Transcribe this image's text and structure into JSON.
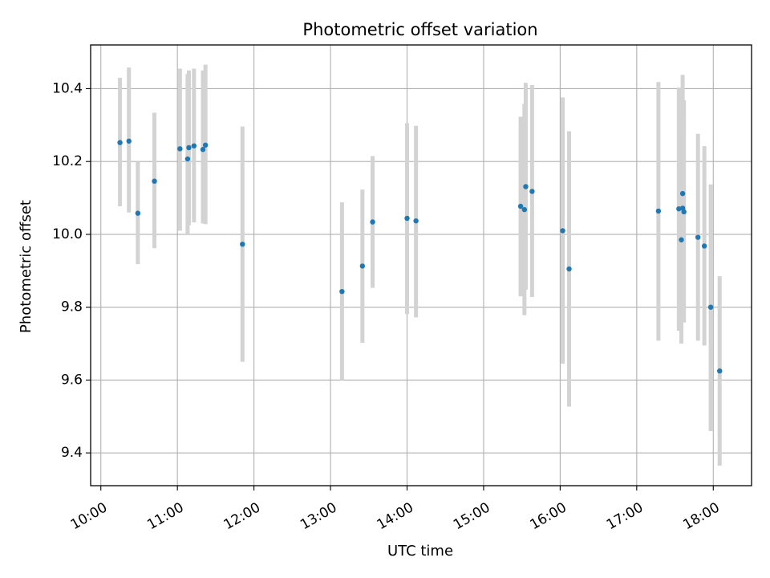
{
  "chart_data": {
    "type": "scatter",
    "title": "Photometric offset variation",
    "xlabel": "UTC time",
    "ylabel": "Photometric offset",
    "xlim": [
      "09:52",
      "18:30"
    ],
    "ylim": [
      9.31,
      10.52
    ],
    "grid": true,
    "x_ticks": [
      "10:00",
      "11:00",
      "12:00",
      "13:00",
      "14:00",
      "15:00",
      "16:00",
      "17:00",
      "18:00"
    ],
    "y_ticks": [
      9.4,
      9.6,
      9.8,
      10.0,
      10.2,
      10.4
    ],
    "y_tick_labels": [
      "9.4",
      "9.6",
      "9.8",
      "10.0",
      "10.2",
      "10.4"
    ],
    "series": [
      {
        "marker_color": "#1f77b4",
        "errorbar_color": "#d3d3d3",
        "points": [
          {
            "x": "10:15",
            "y": 10.252,
            "ylow": 10.077,
            "yhigh": 10.43
          },
          {
            "x": "10:22",
            "y": 10.256,
            "ylow": 10.06,
            "yhigh": 10.458
          },
          {
            "x": "10:29",
            "y": 10.058,
            "ylow": 9.918,
            "yhigh": 10.2
          },
          {
            "x": "10:42",
            "y": 10.146,
            "ylow": 9.962,
            "yhigh": 10.334
          },
          {
            "x": "11:02",
            "y": 10.235,
            "ylow": 10.01,
            "yhigh": 10.455
          },
          {
            "x": "11:08",
            "y": 10.207,
            "ylow": 10.0,
            "yhigh": 10.44
          },
          {
            "x": "11:09",
            "y": 10.238,
            "ylow": 10.025,
            "yhigh": 10.45
          },
          {
            "x": "11:13",
            "y": 10.243,
            "ylow": 10.033,
            "yhigh": 10.455
          },
          {
            "x": "11:20",
            "y": 10.233,
            "ylow": 10.03,
            "yhigh": 10.45
          },
          {
            "x": "11:22",
            "y": 10.245,
            "ylow": 10.028,
            "yhigh": 10.466
          },
          {
            "x": "11:51",
            "y": 9.973,
            "ylow": 9.65,
            "yhigh": 10.296
          },
          {
            "x": "13:09",
            "y": 9.843,
            "ylow": 9.6,
            "yhigh": 10.088
          },
          {
            "x": "13:25",
            "y": 9.913,
            "ylow": 9.702,
            "yhigh": 10.123
          },
          {
            "x": "13:33",
            "y": 10.034,
            "ylow": 9.853,
            "yhigh": 10.215
          },
          {
            "x": "14:00",
            "y": 10.044,
            "ylow": 9.781,
            "yhigh": 10.305
          },
          {
            "x": "14:07",
            "y": 10.037,
            "ylow": 9.772,
            "yhigh": 10.298
          },
          {
            "x": "15:29",
            "y": 10.077,
            "ylow": 9.83,
            "yhigh": 10.323
          },
          {
            "x": "15:32",
            "y": 10.068,
            "ylow": 9.778,
            "yhigh": 10.358
          },
          {
            "x": "15:33",
            "y": 10.131,
            "ylow": 9.848,
            "yhigh": 10.416
          },
          {
            "x": "15:38",
            "y": 10.118,
            "ylow": 9.828,
            "yhigh": 10.41
          },
          {
            "x": "16:02",
            "y": 10.01,
            "ylow": 9.645,
            "yhigh": 10.376
          },
          {
            "x": "16:07",
            "y": 9.905,
            "ylow": 9.527,
            "yhigh": 10.283
          },
          {
            "x": "17:17",
            "y": 10.064,
            "ylow": 9.708,
            "yhigh": 10.418
          },
          {
            "x": "17:33",
            "y": 10.07,
            "ylow": 9.735,
            "yhigh": 10.403
          },
          {
            "x": "17:35",
            "y": 9.985,
            "ylow": 9.7,
            "yhigh": 10.27
          },
          {
            "x": "17:36",
            "y": 10.112,
            "ylow": 9.784,
            "yhigh": 10.438
          },
          {
            "x": "17:36",
            "y": 10.072,
            "ylow": 9.82,
            "yhigh": 10.33
          },
          {
            "x": "17:37",
            "y": 10.062,
            "ylow": 9.758,
            "yhigh": 10.368
          },
          {
            "x": "17:48",
            "y": 9.992,
            "ylow": 9.708,
            "yhigh": 10.276
          },
          {
            "x": "17:53",
            "y": 9.968,
            "ylow": 9.695,
            "yhigh": 10.242
          },
          {
            "x": "17:58",
            "y": 9.8,
            "ylow": 9.46,
            "yhigh": 10.137
          },
          {
            "x": "18:05",
            "y": 9.625,
            "ylow": 9.365,
            "yhigh": 9.885
          }
        ]
      }
    ]
  }
}
